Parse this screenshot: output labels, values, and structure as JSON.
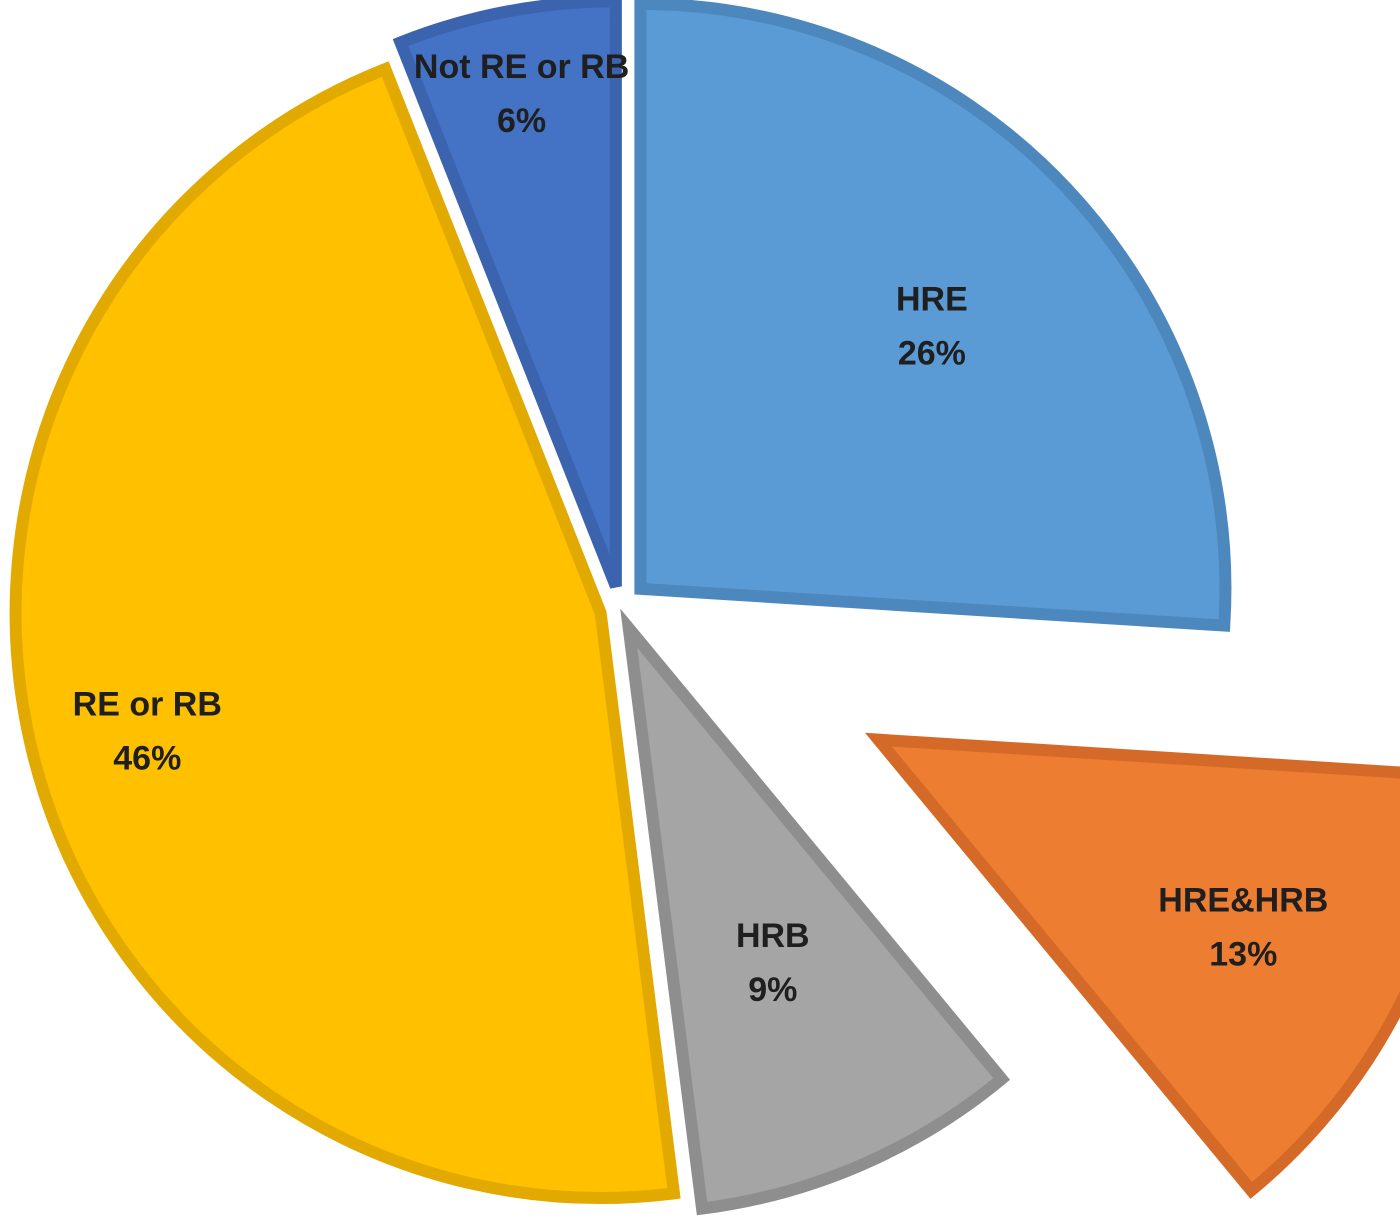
{
  "chart_data": {
    "type": "pie",
    "title": "",
    "start_angle_deg": 0,
    "direction": "clockwise",
    "slices": [
      {
        "label": "HRE",
        "value": 26,
        "value_label": "26%",
        "color": "#5B9BD5",
        "border_color": "#4C87BD",
        "exploded": true
      },
      {
        "label": "HRE&HRB",
        "value": 13,
        "value_label": "13%",
        "color": "#ED7D31",
        "border_color": "#D56A28",
        "exploded": true
      },
      {
        "label": "HRB",
        "value": 9,
        "value_label": "9%",
        "color": "#A5A5A5",
        "border_color": "#8E8E8E",
        "exploded": true
      },
      {
        "label": "RE or RB",
        "value": 46,
        "value_label": "46%",
        "color": "#FFC000",
        "border_color": "#E2AA00",
        "exploded": true
      },
      {
        "label": "Not RE or RB",
        "value": 6,
        "value_label": "6%",
        "color": "#4472C4",
        "border_color": "#3B63AE",
        "exploded": true
      }
    ]
  }
}
